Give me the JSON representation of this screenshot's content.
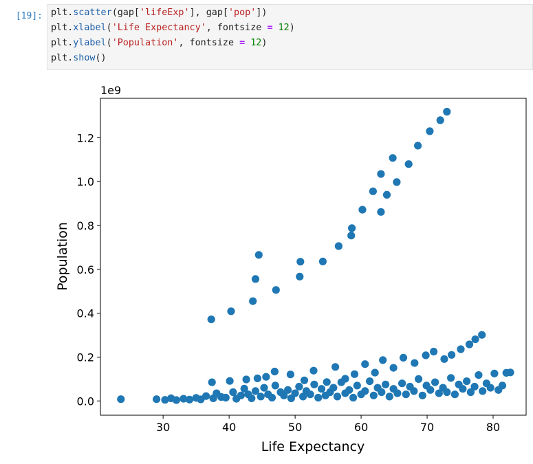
{
  "cell": {
    "prompt": "[19]:",
    "code": [
      [
        {
          "t": "plt."
        },
        {
          "t": "scatter",
          "c": "fn"
        },
        {
          "t": "(gap["
        },
        {
          "t": "'lifeExp'",
          "c": "str"
        },
        {
          "t": "], gap["
        },
        {
          "t": "'pop'",
          "c": "str"
        },
        {
          "t": "])"
        }
      ],
      [
        {
          "t": "plt."
        },
        {
          "t": "xlabel",
          "c": "fn"
        },
        {
          "t": "("
        },
        {
          "t": "'Life Expectancy'",
          "c": "str"
        },
        {
          "t": ", fontsize "
        },
        {
          "t": "=",
          "c": "op"
        },
        {
          "t": " "
        },
        {
          "t": "12",
          "c": "num"
        },
        {
          "t": ")"
        }
      ],
      [
        {
          "t": "plt."
        },
        {
          "t": "ylabel",
          "c": "fn"
        },
        {
          "t": "("
        },
        {
          "t": "'Population'",
          "c": "str"
        },
        {
          "t": ", fontsize "
        },
        {
          "t": "=",
          "c": "op"
        },
        {
          "t": " "
        },
        {
          "t": "12",
          "c": "num"
        },
        {
          "t": ")"
        }
      ],
      [
        {
          "t": "plt."
        },
        {
          "t": "show",
          "c": "fn"
        },
        {
          "t": "()"
        }
      ]
    ]
  },
  "colors": {
    "marker": "#1f77b4",
    "code_background": "#f5f5f5",
    "prompt": "#307fc1"
  },
  "chart_data": {
    "type": "scatter",
    "title": "",
    "xlabel": "Life Expectancy",
    "ylabel": "Population",
    "y_offset_label": "1e9",
    "xlim": [
      20.5,
      85.0
    ],
    "ylim": [
      -0.065,
      1.38
    ],
    "xticks": [
      30,
      40,
      50,
      60,
      70,
      80
    ],
    "yticks": [
      0.0,
      0.2,
      0.4,
      0.6,
      0.8,
      1.0,
      1.2
    ],
    "ytick_labels": [
      "0.0",
      "0.2",
      "0.4",
      "0.6",
      "0.8",
      "1.0",
      "1.2"
    ],
    "grid": false,
    "points_note": "Values of y are in units of 1e9",
    "series": [
      {
        "x": [
          37.3,
          40.3,
          43.6,
          44.0,
          44.5,
          47.1,
          50.7,
          50.8,
          54.2,
          56.6,
          58.5,
          58.6,
          60.2,
          61.8,
          63.0,
          63.0,
          63.9,
          64.8,
          65.4,
          67.2,
          68.6,
          70.4,
          72.0,
          73.0
        ],
        "y": [
          0.372,
          0.409,
          0.455,
          0.556,
          0.666,
          0.506,
          0.567,
          0.635,
          0.636,
          0.706,
          0.754,
          0.788,
          0.872,
          0.956,
          0.862,
          1.035,
          0.94,
          1.108,
          0.998,
          1.08,
          1.164,
          1.23,
          1.28,
          1.319
        ]
      },
      {
        "x": [
          37.4,
          40.1,
          42.6,
          44.3,
          45.6,
          46.9,
          49.3,
          51.4,
          52.8,
          54.8,
          56.1,
          57.6,
          59.0,
          60.6,
          62.1,
          63.3,
          64.9,
          66.4,
          68.1,
          69.8,
          71.0,
          72.6,
          73.7,
          75.1,
          76.4,
          77.3,
          78.3
        ],
        "y": [
          0.085,
          0.091,
          0.098,
          0.103,
          0.11,
          0.134,
          0.121,
          0.094,
          0.138,
          0.086,
          0.155,
          0.101,
          0.122,
          0.168,
          0.129,
          0.186,
          0.151,
          0.197,
          0.173,
          0.208,
          0.225,
          0.191,
          0.21,
          0.236,
          0.258,
          0.281,
          0.301
        ]
      },
      {
        "x": [
          23.6,
          29.0,
          30.3,
          31.2,
          32.0,
          33.1,
          34.0,
          35.0,
          35.7,
          36.5,
          37.6,
          38.1,
          38.8,
          39.5,
          40.6,
          41.1,
          41.8,
          42.3,
          42.9,
          43.4,
          44.0,
          44.8,
          45.3,
          45.9,
          46.5,
          47.0,
          47.8,
          48.3,
          48.9,
          49.4,
          50.0,
          50.6,
          51.2,
          51.7,
          52.3,
          52.9,
          53.5,
          54.0,
          54.6,
          55.3,
          55.8,
          56.4,
          57.0,
          57.6,
          58.2,
          58.8,
          59.4,
          60.0,
          60.6,
          61.3,
          61.9,
          62.5,
          63.1,
          63.7,
          64.3,
          64.9,
          65.5,
          66.2,
          66.8,
          67.4,
          68.0,
          68.7,
          69.3,
          69.9,
          70.5,
          71.2,
          71.8,
          72.4,
          73.0,
          73.6,
          74.2,
          74.8,
          75.4,
          76.0,
          76.6,
          77.2,
          77.8,
          78.4,
          79.0,
          79.6,
          80.2,
          80.8,
          81.4,
          82.0,
          82.6
        ],
        "y": [
          0.008,
          0.008,
          0.005,
          0.012,
          0.004,
          0.01,
          0.006,
          0.014,
          0.007,
          0.022,
          0.012,
          0.035,
          0.018,
          0.015,
          0.04,
          0.01,
          0.025,
          0.056,
          0.03,
          0.012,
          0.045,
          0.02,
          0.06,
          0.03,
          0.015,
          0.07,
          0.04,
          0.025,
          0.05,
          0.012,
          0.035,
          0.065,
          0.02,
          0.045,
          0.03,
          0.075,
          0.015,
          0.055,
          0.025,
          0.04,
          0.06,
          0.02,
          0.085,
          0.035,
          0.05,
          0.015,
          0.07,
          0.03,
          0.045,
          0.09,
          0.025,
          0.06,
          0.04,
          0.075,
          0.02,
          0.055,
          0.035,
          0.08,
          0.03,
          0.065,
          0.045,
          0.1,
          0.025,
          0.07,
          0.05,
          0.085,
          0.035,
          0.06,
          0.04,
          0.105,
          0.03,
          0.075,
          0.055,
          0.09,
          0.04,
          0.065,
          0.118,
          0.045,
          0.08,
          0.06,
          0.125,
          0.05,
          0.07,
          0.128,
          0.13
        ]
      }
    ]
  }
}
